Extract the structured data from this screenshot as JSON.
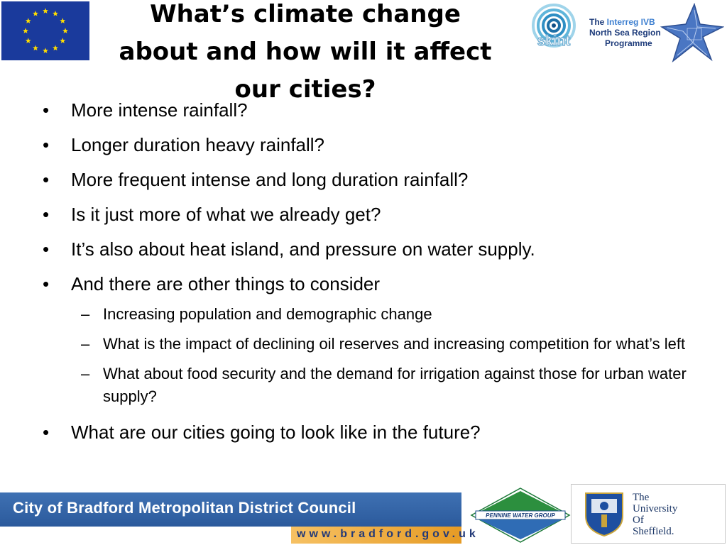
{
  "slide": {
    "title": "What’s climate change about and how will it affect our cities?",
    "bullets": [
      {
        "text": "More intense rainfall?"
      },
      {
        "text": "Longer duration heavy rainfall?"
      },
      {
        "text": "More frequent intense and long duration rainfall?"
      },
      {
        "text": "Is it just more of what we already get?"
      },
      {
        "text": "It’s also about heat island, and pressure on water supply."
      },
      {
        "text": "And there are other things to consider",
        "sub": [
          "Increasing population and demographic change",
          "What is the impact of declining oil reserves and increasing competition for what’s left",
          "What about food security and the demand for irrigation against those for urban water supply?"
        ]
      },
      {
        "text": "What are our cities going to look like in the future?"
      }
    ],
    "bullet_glyph": "•",
    "sub_glyph": "–"
  },
  "logos": {
    "eu_flag": {
      "icon": "eu-flag-icon",
      "color": "#1a3a9c",
      "star_color": "#ffdd00"
    },
    "skint": {
      "icon": "skint-logo-icon",
      "text": "skint"
    },
    "interreg": {
      "line1_pre": "The ",
      "line1_hl": "Interreg IVB",
      "line2": "North Sea Region",
      "line3": "Programme",
      "icon": "starfish-icon"
    },
    "council": {
      "name": "City of Bradford Metropolitan District Council",
      "url": "www.bradford.gov.uk",
      "color": "#2b5a9c",
      "accent": "#e69b25"
    },
    "pennine": {
      "text": "PENNINE WATER GROUP",
      "icon": "pennine-water-group-logo-icon"
    },
    "sheffield": {
      "line1": "The",
      "line2": "University",
      "line3": "Of",
      "line4": "Sheffield.",
      "icon": "sheffield-shield-icon"
    }
  }
}
